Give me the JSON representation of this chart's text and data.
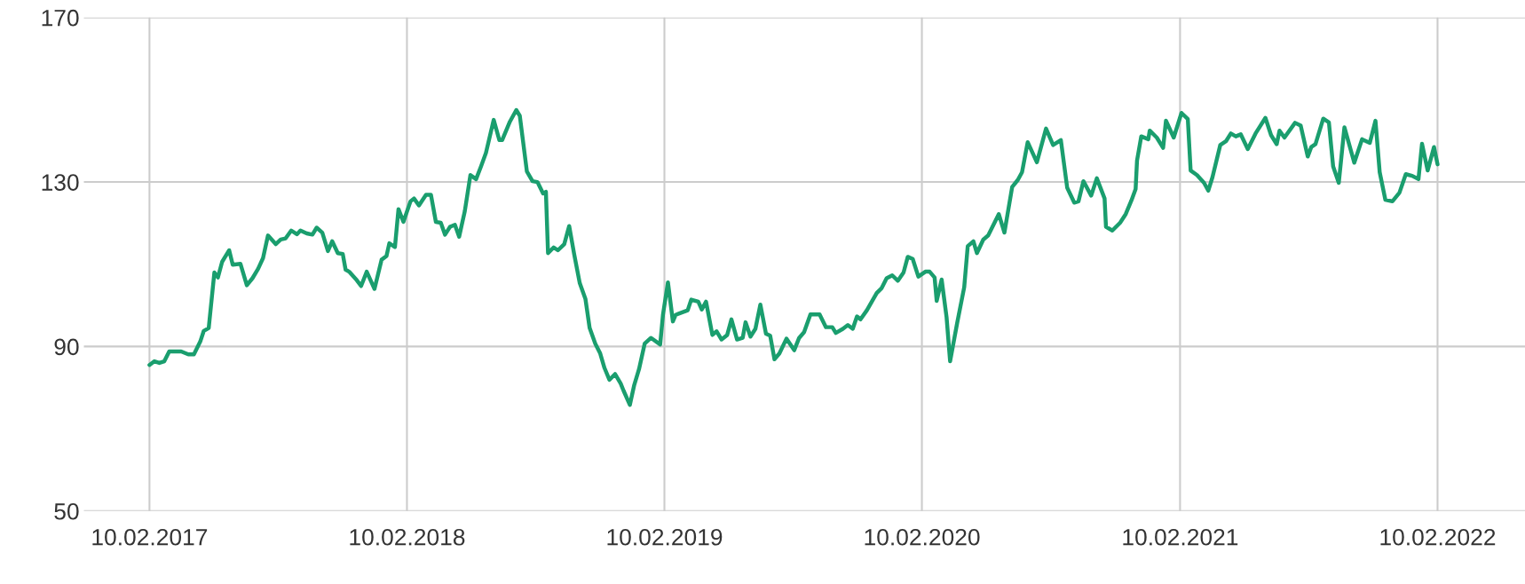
{
  "chart_data": {
    "type": "line",
    "color": "#1a9e6e",
    "grid": true,
    "marker": "none",
    "line_style": "solid",
    "xlim": [
      "2016-11-09",
      "2022-06-14"
    ],
    "ylim": [
      50,
      170
    ],
    "yticks": [
      50,
      90,
      130,
      170
    ],
    "xticks": [
      {
        "value": "2017-02-10",
        "label": "10.02.2017"
      },
      {
        "value": "2018-02-10",
        "label": "10.02.2018"
      },
      {
        "value": "2019-02-10",
        "label": "10.02.2019"
      },
      {
        "value": "2020-02-10",
        "label": "10.02.2020"
      },
      {
        "value": "2021-02-10",
        "label": "10.02.2021"
      },
      {
        "value": "2022-02-10",
        "label": "10.02.2022"
      }
    ],
    "x": [
      "2017-02-10",
      "2017-02-17",
      "2017-02-24",
      "2017-03-03",
      "2017-03-10",
      "2017-03-17",
      "2017-03-27",
      "2017-04-06",
      "2017-04-14",
      "2017-04-23",
      "2017-04-28",
      "2017-05-05",
      "2017-05-13",
      "2017-05-18",
      "2017-05-24",
      "2017-06-03",
      "2017-06-08",
      "2017-06-19",
      "2017-06-28",
      "2017-07-06",
      "2017-07-14",
      "2017-07-21",
      "2017-07-28",
      "2017-08-08",
      "2017-08-15",
      "2017-08-22",
      "2017-08-30",
      "2017-09-07",
      "2017-09-12",
      "2017-09-21",
      "2017-09-29",
      "2017-10-05",
      "2017-10-13",
      "2017-10-21",
      "2017-10-27",
      "2017-11-04",
      "2017-11-11",
      "2017-11-15",
      "2017-11-20",
      "2017-12-01",
      "2017-12-07",
      "2017-12-15",
      "2017-12-26",
      "2018-01-05",
      "2018-01-12",
      "2018-01-16",
      "2018-01-24",
      "2018-01-29",
      "2018-02-05",
      "2018-02-15",
      "2018-02-20",
      "2018-02-27",
      "2018-03-09",
      "2018-03-16",
      "2018-03-23",
      "2018-03-30",
      "2018-04-05",
      "2018-04-12",
      "2018-04-19",
      "2018-04-25",
      "2018-05-03",
      "2018-05-11",
      "2018-05-19",
      "2018-05-26",
      "2018-06-02",
      "2018-06-13",
      "2018-06-21",
      "2018-06-25",
      "2018-07-06",
      "2018-07-15",
      "2018-07-20",
      "2018-07-30",
      "2018-08-07",
      "2018-08-14",
      "2018-08-22",
      "2018-08-26",
      "2018-08-29",
      "2018-09-06",
      "2018-09-12",
      "2018-09-21",
      "2018-09-28",
      "2018-10-05",
      "2018-10-13",
      "2018-10-21",
      "2018-10-27",
      "2018-11-04",
      "2018-11-11",
      "2018-11-17",
      "2018-11-24",
      "2018-12-02",
      "2018-12-10",
      "2018-12-14",
      "2018-12-23",
      "2018-12-29",
      "2019-01-05",
      "2019-01-13",
      "2019-01-22",
      "2019-02-04",
      "2019-02-08",
      "2019-02-15",
      "2019-02-22",
      "2019-02-26",
      "2019-03-15",
      "2019-03-20",
      "2019-03-30",
      "2019-04-04",
      "2019-04-10",
      "2019-04-19",
      "2019-04-25",
      "2019-05-02",
      "2019-05-10",
      "2019-05-16",
      "2019-05-24",
      "2019-06-01",
      "2019-06-05",
      "2019-06-12",
      "2019-06-19",
      "2019-06-26",
      "2019-07-04",
      "2019-07-10",
      "2019-07-16",
      "2019-07-23",
      "2019-08-02",
      "2019-08-13",
      "2019-08-20",
      "2019-08-27",
      "2019-09-05",
      "2019-09-18",
      "2019-09-27",
      "2019-10-06",
      "2019-10-11",
      "2019-10-21",
      "2019-10-28",
      "2019-11-04",
      "2019-11-10",
      "2019-11-15",
      "2019-11-24",
      "2019-12-01",
      "2019-12-08",
      "2019-12-15",
      "2019-12-22",
      "2019-12-30",
      "2020-01-07",
      "2020-01-15",
      "2020-01-21",
      "2020-01-28",
      "2020-02-05",
      "2020-02-15",
      "2020-02-21",
      "2020-02-28",
      "2020-03-02",
      "2020-03-09",
      "2020-03-16",
      "2020-03-21",
      "2020-03-31",
      "2020-04-10",
      "2020-04-15",
      "2020-04-23",
      "2020-04-28",
      "2020-05-07",
      "2020-05-14",
      "2020-05-29",
      "2020-06-06",
      "2020-06-17",
      "2020-06-25",
      "2020-07-01",
      "2020-07-09",
      "2020-07-22",
      "2020-08-04",
      "2020-08-14",
      "2020-08-25",
      "2020-09-03",
      "2020-09-13",
      "2020-09-19",
      "2020-09-26",
      "2020-10-07",
      "2020-10-15",
      "2020-10-26",
      "2020-10-28",
      "2020-11-06",
      "2020-11-17",
      "2020-11-25",
      "2020-12-03",
      "2020-12-09",
      "2020-12-11",
      "2020-12-17",
      "2020-12-27",
      "2020-12-29",
      "2021-01-08",
      "2021-01-17",
      "2021-01-21",
      "2021-02-01",
      "2021-02-12",
      "2021-02-21",
      "2021-02-25",
      "2021-03-06",
      "2021-03-16",
      "2021-03-22",
      "2021-03-28",
      "2021-04-08",
      "2021-04-16",
      "2021-04-23",
      "2021-04-30",
      "2021-05-07",
      "2021-05-17",
      "2021-05-28",
      "2021-06-11",
      "2021-06-19",
      "2021-06-27",
      "2021-07-01",
      "2021-07-08",
      "2021-07-23",
      "2021-07-31",
      "2021-08-10",
      "2021-08-15",
      "2021-08-21",
      "2021-09-01",
      "2021-09-09",
      "2021-09-15",
      "2021-09-23",
      "2021-10-01",
      "2021-10-15",
      "2021-10-26",
      "2021-11-06",
      "2021-11-14",
      "2021-11-20",
      "2021-11-28",
      "2021-12-08",
      "2021-12-18",
      "2021-12-27",
      "2022-01-05",
      "2022-01-14",
      "2022-01-19",
      "2022-01-27",
      "2022-02-05",
      "2022-02-10"
    ],
    "values": [
      85.5,
      86.4,
      86.0,
      86.4,
      88.8,
      88.8,
      88.8,
      88.1,
      88.1,
      91.2,
      93.8,
      94.5,
      108.0,
      106.8,
      110.6,
      113.4,
      109.9,
      110.1,
      104.9,
      106.6,
      108.9,
      111.5,
      117.0,
      114.9,
      116.0,
      116.3,
      118.2,
      117.3,
      118.2,
      117.5,
      117.2,
      118.9,
      117.7,
      113.2,
      115.6,
      112.7,
      112.5,
      108.7,
      108.2,
      106.1,
      104.7,
      108.2,
      104.0,
      111.1,
      112.0,
      115.1,
      114.2,
      123.4,
      120.3,
      125.3,
      126.0,
      124.3,
      126.9,
      126.9,
      120.3,
      120.1,
      117.2,
      119.1,
      119.6,
      116.7,
      122.9,
      131.7,
      130.7,
      133.8,
      137.1,
      145.1,
      140.2,
      140.2,
      144.7,
      147.5,
      146.1,
      132.6,
      130.2,
      130.0,
      127.2,
      127.6,
      112.7,
      114.1,
      113.4,
      114.9,
      119.3,
      112.5,
      105.4,
      101.6,
      94.5,
      90.7,
      88.3,
      84.8,
      81.9,
      83.3,
      81.0,
      79.3,
      75.8,
      80.5,
      84.5,
      90.7,
      92.1,
      90.5,
      97.8,
      105.6,
      96.1,
      97.7,
      98.8,
      101.4,
      100.9,
      99.0,
      100.9,
      92.8,
      93.7,
      91.7,
      92.8,
      96.6,
      91.7,
      92.1,
      95.9,
      92.4,
      94.3,
      100.2,
      93.1,
      92.6,
      86.9,
      88.3,
      91.9,
      89.1,
      92.1,
      93.5,
      97.8,
      97.8,
      94.7,
      94.7,
      93.3,
      94.3,
      95.2,
      94.3,
      97.3,
      96.6,
      98.8,
      100.9,
      103.0,
      104.2,
      106.6,
      107.3,
      106.0,
      108.0,
      111.8,
      111.3,
      107.0,
      108.2,
      108.2,
      106.8,
      101.1,
      106.3,
      97.1,
      86.4,
      95.7,
      104.4,
      114.4,
      115.6,
      112.7,
      116.0,
      117.0,
      122.2,
      117.7,
      128.8,
      130.5,
      132.4,
      139.7,
      134.8,
      143.0,
      139.0,
      140.2,
      128.6,
      125.0,
      125.3,
      130.2,
      126.7,
      130.9,
      126.0,
      119.1,
      118.2,
      120.1,
      122.2,
      125.5,
      128.3,
      135.2,
      141.1,
      140.4,
      142.5,
      140.8,
      138.3,
      144.9,
      140.8,
      146.8,
      145.3,
      132.8,
      131.7,
      129.8,
      127.9,
      131.2,
      139.0,
      139.9,
      141.8,
      141.1,
      141.6,
      138.0,
      141.8,
      145.6,
      141.4,
      139.2,
      142.5,
      140.8,
      144.4,
      143.7,
      136.2,
      138.5,
      139.2,
      145.4,
      144.5,
      133.8,
      129.8,
      143.3,
      134.7,
      140.4,
      139.5,
      144.9,
      132.4,
      125.7,
      125.3,
      127.4,
      131.9,
      131.5,
      130.7,
      139.3,
      132.8,
      138.5,
      134.3
    ]
  }
}
